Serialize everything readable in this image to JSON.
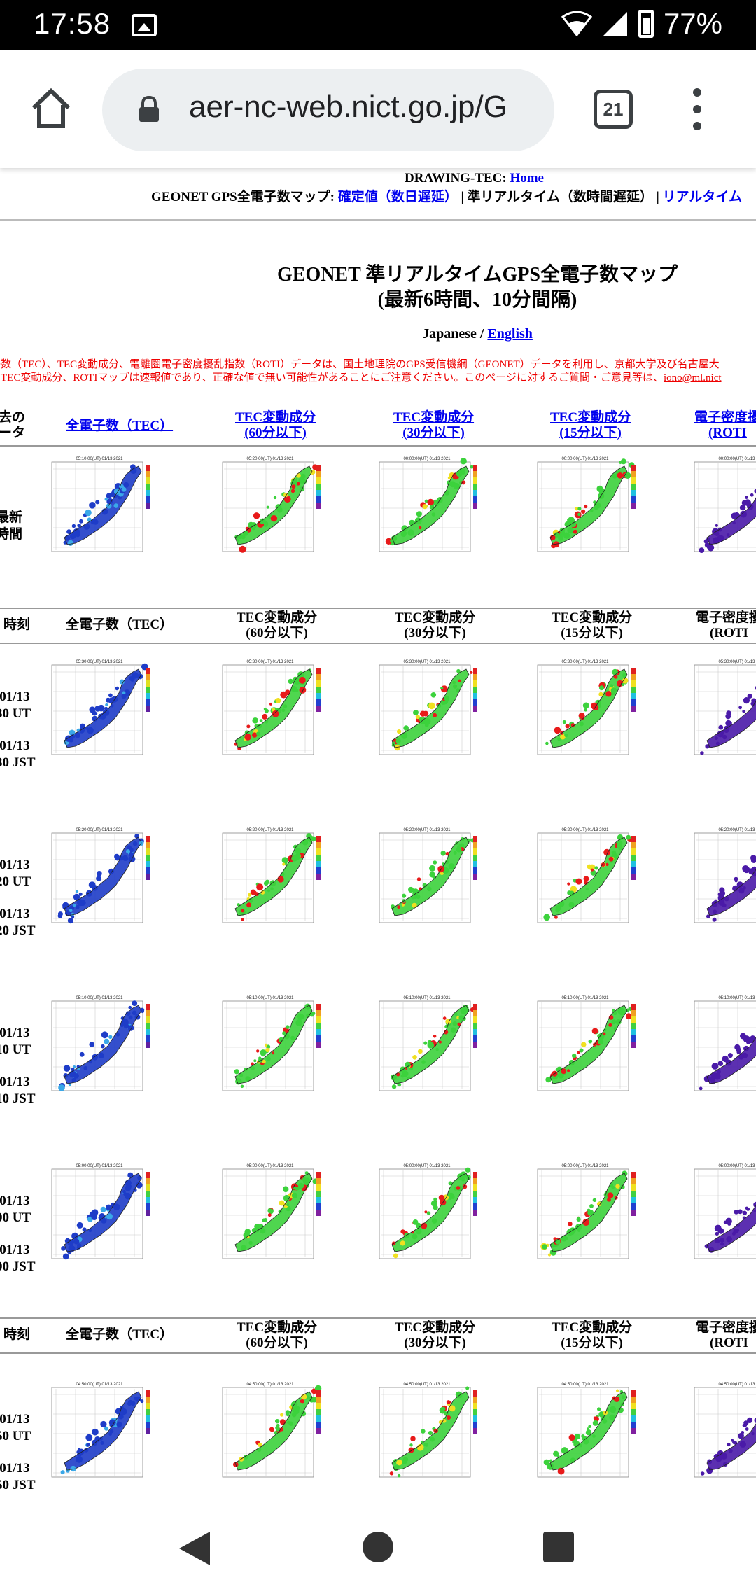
{
  "status_bar": {
    "time": "17:58",
    "battery": "77%"
  },
  "browser": {
    "url": "aer-nc-web.nict.go.jp/G",
    "tab_count": "21"
  },
  "header": {
    "drawing_label": "DRAWING-TEC: ",
    "home_link": "Home",
    "geonet_label": "GEONET GPS全電子数マップ: ",
    "confirmed_link": "確定値（数日遅延）",
    "sep1": " | 準リアルタイム（数時間遅延） | ",
    "realtime_link": "リアルタイム"
  },
  "title": {
    "line1": "GEONET 準リアルタイムGPS全電子数マップ",
    "line2": "(最新6時間、10分間隔)"
  },
  "language": {
    "japanese": "Japanese / ",
    "english_link": "English"
  },
  "notice": {
    "line1": "子数（TEC）、TEC変動成分、電離圏電子密度擾乱指数（ROTI）データは、国土地理院のGPS受信機網（GEONET）データを利用し、京都大学及び名古屋大",
    "line2": "、TEC変動成分、ROTIマップは速報値であり、正確な値で無い可能性があることにご注意ください。このページに対するご質問・ご意見等は、",
    "email_link": "iono@ml.nict"
  },
  "top_header": {
    "col0_line1": "去の",
    "col0_line2": "ータ",
    "col1": "全電子数（TEC）",
    "col2_line1": "TEC変動成分",
    "col2_line2": "(60分以下)",
    "col3_line1": "TEC変動成分",
    "col3_line2": "(30分以下)",
    "col4_line1": "TEC変動成分",
    "col4_line2": "(15分以下)",
    "col5_line1": "電子密度擾",
    "col5_line2": "(ROTI"
  },
  "latest_row": {
    "label_line1": "最新",
    "label_line2": "時間"
  },
  "table_header": {
    "col0": "・時刻",
    "col1": "全電子数（TEC）",
    "col2_line1": "TEC変動成分",
    "col2_line2": "(60分以下)",
    "col3_line1": "TEC変動成分",
    "col3_line2": "(30分以下)",
    "col4_line1": "TEC変動成分",
    "col4_line2": "(15分以下)",
    "col5_line1": "電子密度擾",
    "col5_line2": "(ROTI"
  },
  "rows": [
    {
      "date1": "/01/13",
      "time1": "30 UT",
      "date2": "/01/13",
      "time2": "30 JST",
      "map_stamp": "05:30:00(UT) 01/13 2021"
    },
    {
      "date1": "/01/13",
      "time1": "20 UT",
      "date2": "/01/13",
      "time2": "20 JST",
      "map_stamp": "05:20:00(UT) 01/13 2021"
    },
    {
      "date1": "/01/13",
      "time1": "10 UT",
      "date2": "/01/13",
      "time2": "10 JST",
      "map_stamp": "05:10:00(UT) 01/13 2021"
    },
    {
      "date1": "/01/13",
      "time1": "00 UT",
      "date2": "/01/13",
      "time2": "00 JST",
      "map_stamp": "05:00:00(UT) 01/13 2021"
    },
    {
      "date1": "/01/13",
      "time1": "50 UT",
      "date2": "/01/13",
      "time2": "50 JST",
      "map_stamp": "04:50:00(UT) 01/13 2021"
    }
  ],
  "map_palettes": {
    "tec": "#1e3cc8",
    "variation": "#3cd23c",
    "roti": "#4a1aa8",
    "highlight": "#e81a1a"
  }
}
